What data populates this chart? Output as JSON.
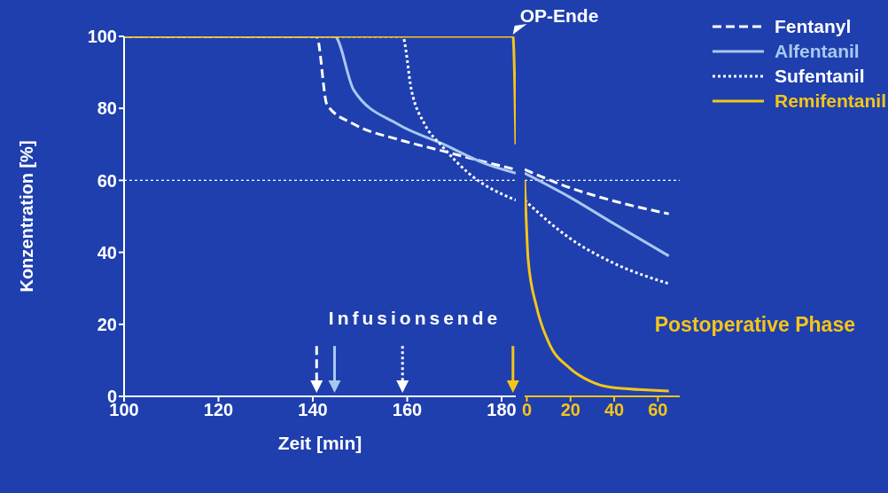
{
  "chart_data": [
    {
      "type": "line",
      "xlabel": "Zeit [min]",
      "ylabel": "Konzentration [%]",
      "xlim": [
        100,
        183
      ],
      "xticks": [
        100,
        120,
        140,
        160,
        180
      ],
      "ylim": [
        0,
        100
      ],
      "yticks": [
        0,
        20,
        40,
        60,
        80,
        100
      ],
      "marker": "none",
      "ref_lines": [
        {
          "axis": "y",
          "value": 60,
          "color": "#ffffff",
          "line_style": "dotted"
        }
      ],
      "annotations": [
        {
          "text": "OP-Ende",
          "x": 182,
          "y": 100
        },
        "Infusionsende"
      ],
      "series": [
        {
          "color": "#ffffff",
          "line_style": "dashed",
          "x": [
            100,
            140.8,
            143,
            148.7,
            158,
            167.4,
            176.8,
            183
          ],
          "values": [
            100,
            100,
            81,
            75.6,
            71.4,
            68.2,
            65,
            63
          ]
        },
        {
          "color": "#a8c8f0",
          "line_style": "solid",
          "x": [
            100,
            144.6,
            148.7,
            158,
            167.4,
            176.8,
            183
          ],
          "values": [
            100,
            100,
            85,
            75.6,
            70.2,
            64.5,
            62
          ]
        },
        {
          "color": "#ffffff",
          "line_style": "dotted",
          "x": [
            100,
            159,
            160.9,
            163.7,
            167.4,
            173,
            183
          ],
          "values": [
            100,
            100,
            85,
            75.6,
            69.5,
            62,
            54.5
          ]
        },
        {
          "color": "#f5c518",
          "line_style": "solid",
          "x": [
            100,
            182.4,
            183
          ],
          "values": [
            100,
            100,
            70
          ]
        }
      ]
    },
    {
      "type": "line",
      "tick_labels": "x",
      "xlim": [
        -1,
        70
      ],
      "xticks": [
        0,
        20,
        40,
        60
      ],
      "ylim": [
        0,
        100
      ],
      "yticks": [
        0,
        20,
        40,
        60,
        80,
        100
      ],
      "marker": "none",
      "legend": "top right",
      "ref_lines": [
        {
          "axis": "y",
          "value": 60,
          "color": "#ffffff",
          "line_style": "dotted"
        }
      ],
      "annotations": [
        "Postoperative Phase"
      ],
      "series": [
        {
          "name": "Fentanyl",
          "color": "#ffffff",
          "line_style": "dashed",
          "x": [
            -1,
            19.5,
            38.4,
            65
          ],
          "values": [
            63,
            58,
            54.5,
            50.7
          ]
        },
        {
          "name": "Alfentanil",
          "color": "#a8c8f0",
          "line_style": "solid",
          "x": [
            -1,
            19.5,
            38.4,
            65
          ],
          "values": [
            62,
            55.4,
            48.5,
            39
          ]
        },
        {
          "name": "Sufentanil",
          "color": "#ffffff",
          "line_style": "dotted",
          "x": [
            -1,
            10,
            19.5,
            38.4,
            65
          ],
          "values": [
            54.5,
            48.5,
            44,
            37.4,
            31.3
          ]
        },
        {
          "name": "Remifentanil",
          "color": "#f5c518",
          "line_style": "solid",
          "x": [
            -1,
            0,
            0.6,
            4.4,
            10,
            19.5,
            29,
            38.4,
            65
          ],
          "values": [
            60,
            45,
            38,
            25,
            15,
            7.9,
            4.2,
            2.5,
            1.5
          ]
        }
      ]
    }
  ]
}
